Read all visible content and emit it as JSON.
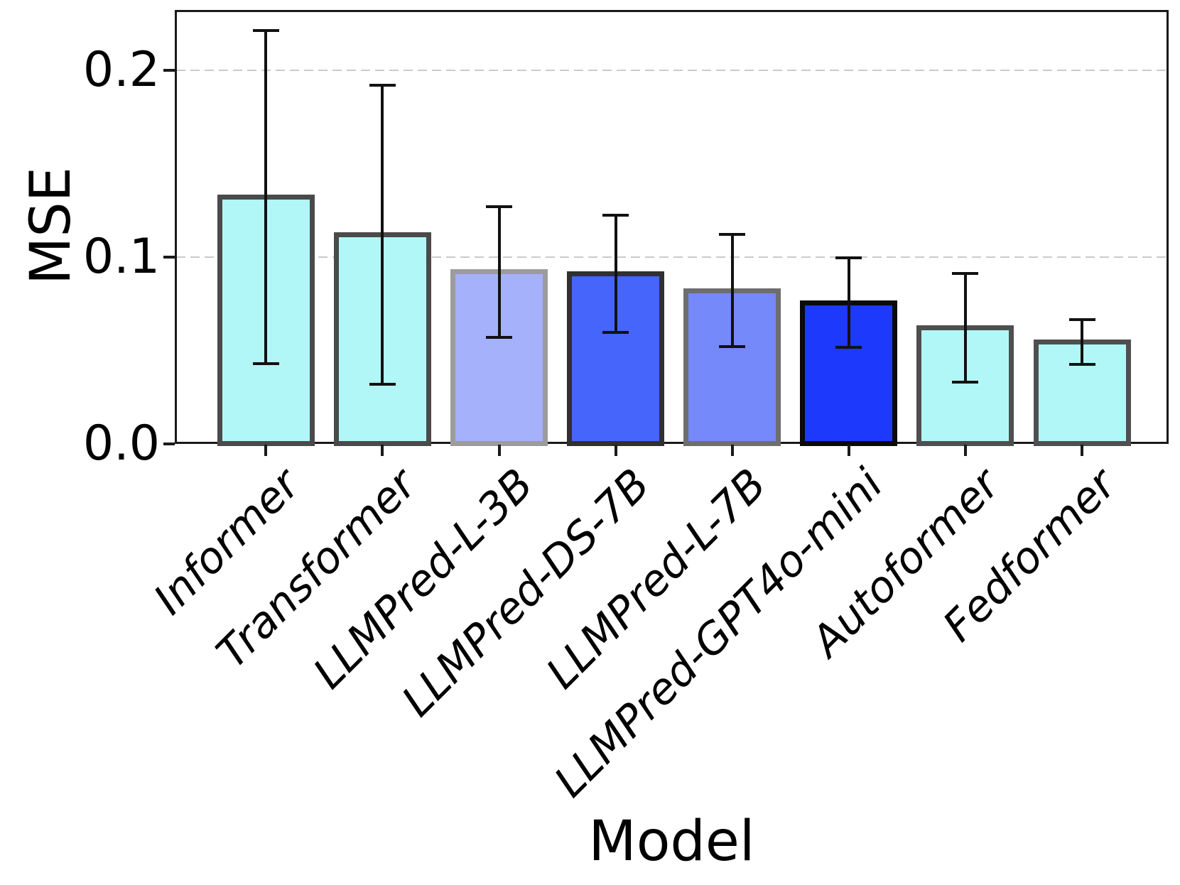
{
  "chart_data": {
    "type": "bar",
    "title": "",
    "xlabel": "Model",
    "ylabel": "MSE",
    "categories": [
      "Informer",
      "Transformer",
      "LLMPred-L-3B",
      "LLMPred-DS-7B",
      "LLMPred-L-7B",
      "LLMPred-GPT4o-mini",
      "Autoformer",
      "Fedformer"
    ],
    "values": [
      0.132,
      0.112,
      0.092,
      0.091,
      0.082,
      0.0755,
      0.062,
      0.0545
    ],
    "errors": [
      0.089,
      0.08,
      0.035,
      0.0315,
      0.03,
      0.024,
      0.029,
      0.012
    ],
    "bar_colors": [
      "#b2f7f7",
      "#b2f7f7",
      "#a6b1fc",
      "#4565fb",
      "#7689fb",
      "#1c39fc",
      "#b2f7f7",
      "#b2f7f7"
    ],
    "edge_colors": [
      "#4a4a4a",
      "#4a4a4a",
      "#9c9c9c",
      "#303030",
      "#6e6e6e",
      "#0a0a0a",
      "#4f4f4f",
      "#4f4f4f"
    ],
    "error_color": "#111111",
    "ylim": [
      0,
      0.2321
    ],
    "yticks": [
      {
        "label": "0.0",
        "value": 0.0
      },
      {
        "label": "0.1",
        "value": 0.1
      },
      {
        "label": "0.2",
        "value": 0.2
      }
    ],
    "grid": {
      "on": true,
      "values": [
        0.1,
        0.2
      ],
      "style": "dashed",
      "color": "#cbcbcb"
    },
    "legend": "none",
    "bar_width_fraction": 0.83
  }
}
